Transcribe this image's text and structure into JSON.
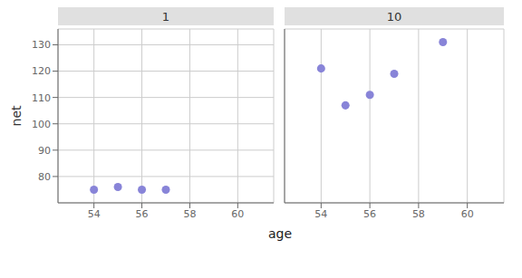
{
  "chart_data": [
    {
      "type": "scatter",
      "title": "1",
      "xlabel": "age",
      "ylabel": "net",
      "x": [
        54,
        55,
        56,
        57
      ],
      "values": [
        75,
        76,
        75,
        75
      ],
      "xlim": [
        52.5,
        61.5
      ],
      "ylim": [
        70,
        136
      ],
      "xticks": [
        54,
        56,
        58,
        60
      ],
      "yticks": [
        80,
        90,
        100,
        110,
        120,
        130
      ],
      "grid": true,
      "color": "#8884d8"
    },
    {
      "type": "scatter",
      "title": "10",
      "x": [
        54,
        55,
        56,
        57,
        59
      ],
      "values": [
        121,
        107,
        111,
        119,
        131
      ],
      "xlim": [
        52.5,
        61.5
      ],
      "ylim": [
        70,
        136
      ],
      "xticks": [
        54,
        56,
        58,
        60
      ],
      "yticks": [
        80,
        90,
        100,
        110,
        120,
        130
      ],
      "grid": true,
      "color": "#8884d8",
      "tick_labels": "x"
    }
  ]
}
